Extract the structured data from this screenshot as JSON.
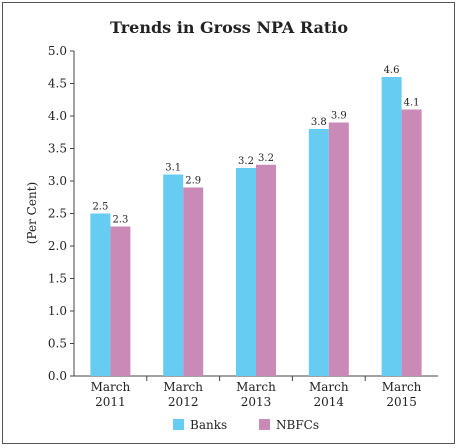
{
  "chart_data": {
    "type": "bar",
    "title": "Trends in Gross NPA Ratio",
    "ylabel": "(Per Cent)",
    "xlabel": "",
    "categories": [
      [
        "March",
        "2011"
      ],
      [
        "March",
        "2012"
      ],
      [
        "March",
        "2013"
      ],
      [
        "March",
        "2014"
      ],
      [
        "March",
        "2015"
      ]
    ],
    "series": [
      {
        "name": "Banks",
        "color": "#66ccf2",
        "values": [
          2.5,
          3.1,
          3.2,
          3.8,
          4.6
        ],
        "labels": [
          "2.5",
          "3.1",
          "3.2",
          "3.8",
          "4.6"
        ]
      },
      {
        "name": "NBFCs",
        "color": "#c98ab7",
        "values": [
          2.3,
          2.9,
          3.25,
          3.9,
          4.1
        ],
        "labels": [
          "2.3",
          "2.9",
          "3.2",
          "3.9",
          "4.1"
        ]
      }
    ],
    "ylim": [
      0,
      5
    ],
    "yticks": [
      "0.0",
      "0.5",
      "1.0",
      "1.5",
      "2.0",
      "2.5",
      "3.0",
      "3.5",
      "4.0",
      "4.5",
      "5.0"
    ],
    "grid": false,
    "legend_position": "bottom-center"
  }
}
